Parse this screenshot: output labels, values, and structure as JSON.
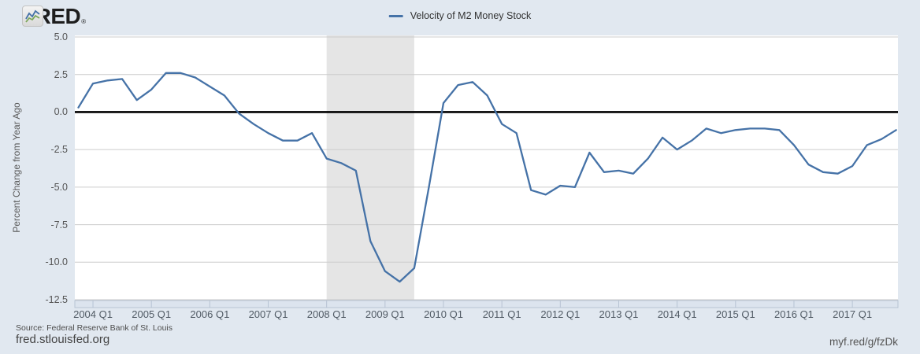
{
  "header": {
    "logo_text": "FRED",
    "logo_registered": "®"
  },
  "legend": {
    "label": "Velocity of M2 Money Stock"
  },
  "footer": {
    "source": "Source: Federal Reserve Bank of St. Louis",
    "site": "fred.stlouisfed.org",
    "short_url": "myf.red/g/fzDk"
  },
  "colors": {
    "background": "#e1e8f0",
    "plot_bg": "#ffffff",
    "grid": "#cccccc",
    "zero_line": "#000000",
    "line": "#4572a7",
    "recession": "#e5e5e5",
    "axis_strip": "#dce4ee",
    "axis_strip_border": "#b7c3d3",
    "logo_line_blue": "#4572a7",
    "logo_line_green": "#7aa659"
  },
  "chart_data": {
    "type": "line",
    "title": "Velocity of M2 Money Stock",
    "ylabel": "Percent Change from Year Ago",
    "frequency": "Quarterly",
    "grid": true,
    "legend_position": "top-center",
    "ylim": [
      -12.5,
      5.0
    ],
    "y_ticks": [
      "5.0",
      "2.5",
      "0.0",
      "-2.5",
      "-5.0",
      "-7.5",
      "-10.0",
      "-12.5"
    ],
    "x_year_ticks": [
      "2004 Q1",
      "2005 Q1",
      "2006 Q1",
      "2007 Q1",
      "2008 Q1",
      "2009 Q1",
      "2010 Q1",
      "2011 Q1",
      "2012 Q1",
      "2013 Q1",
      "2014 Q1",
      "2015 Q1",
      "2016 Q1",
      "2017 Q1"
    ],
    "recession_band": {
      "start": "2007 Q4",
      "end": "2009 Q2"
    },
    "x": [
      "2003 Q4",
      "2004 Q1",
      "2004 Q2",
      "2004 Q3",
      "2004 Q4",
      "2005 Q1",
      "2005 Q2",
      "2005 Q3",
      "2005 Q4",
      "2006 Q1",
      "2006 Q2",
      "2006 Q3",
      "2006 Q4",
      "2007 Q1",
      "2007 Q2",
      "2007 Q3",
      "2007 Q4",
      "2008 Q1",
      "2008 Q2",
      "2008 Q3",
      "2008 Q4",
      "2009 Q1",
      "2009 Q2",
      "2009 Q3",
      "2009 Q4",
      "2010 Q1",
      "2010 Q2",
      "2010 Q3",
      "2010 Q4",
      "2011 Q1",
      "2011 Q2",
      "2011 Q3",
      "2011 Q4",
      "2012 Q1",
      "2012 Q2",
      "2012 Q3",
      "2012 Q4",
      "2013 Q1",
      "2013 Q2",
      "2013 Q3",
      "2013 Q4",
      "2014 Q1",
      "2014 Q2",
      "2014 Q3",
      "2014 Q4",
      "2015 Q1",
      "2015 Q2",
      "2015 Q3",
      "2015 Q4",
      "2016 Q1",
      "2016 Q2",
      "2016 Q3",
      "2016 Q4",
      "2017 Q1",
      "2017 Q2",
      "2017 Q3",
      "2017 Q4"
    ],
    "values": [
      0.3,
      1.9,
      2.1,
      2.2,
      0.8,
      1.5,
      2.6,
      2.6,
      2.3,
      1.7,
      1.1,
      -0.1,
      -0.8,
      -1.4,
      -1.9,
      -1.9,
      -1.4,
      -3.1,
      -3.4,
      -3.9,
      -8.6,
      -10.6,
      -11.3,
      -10.4,
      -5.0,
      0.6,
      1.8,
      2.0,
      1.1,
      -0.8,
      -1.4,
      -5.2,
      -5.5,
      -4.9,
      -5.0,
      -2.7,
      -4.0,
      -3.9,
      -4.1,
      -3.1,
      -1.7,
      -2.5,
      -1.9,
      -1.1,
      -1.4,
      -1.2,
      -1.1,
      -1.1,
      -1.2,
      -2.2,
      -3.5,
      -4.0,
      -4.1,
      -3.6,
      -2.2,
      -1.8,
      -1.2
    ]
  }
}
